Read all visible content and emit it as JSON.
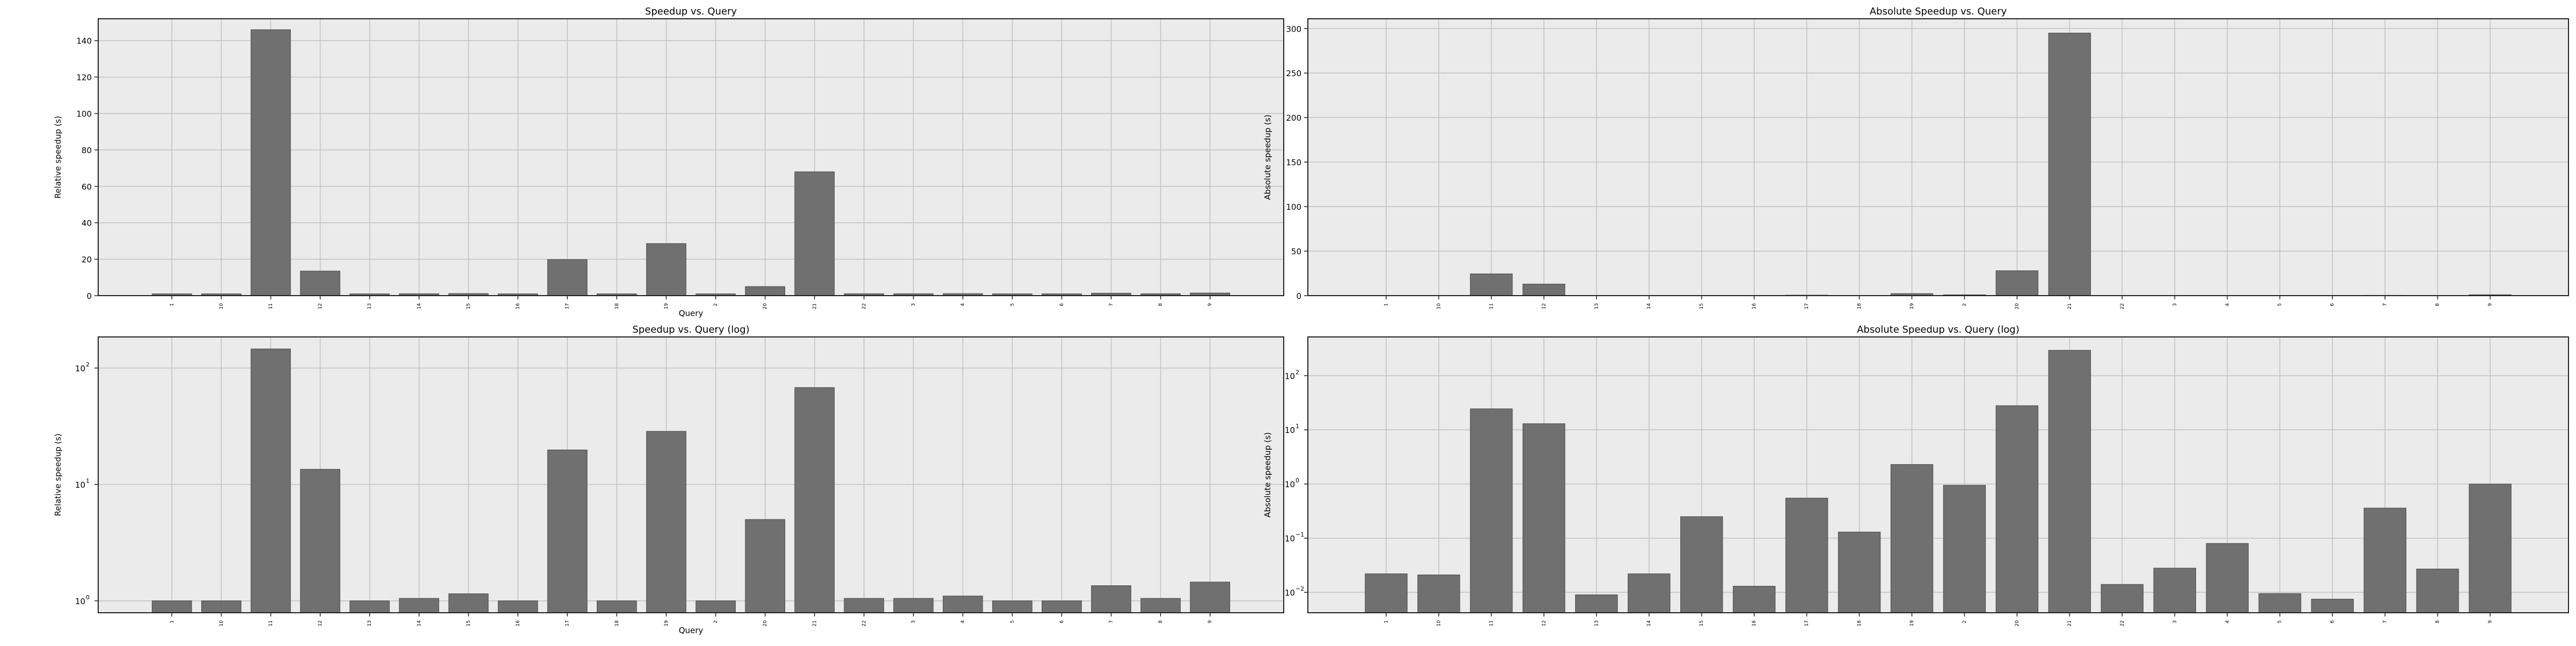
{
  "style": {
    "face": "#ebebeb",
    "grid": "#c4c4c4",
    "bar": "#707070",
    "bar_edge": "#4a4a4a"
  },
  "chart_data": [
    {
      "type": "bar",
      "title": "Speedup vs. Query",
      "xlabel": "Query",
      "ylabel": "Relative speedup (s)",
      "scale": "linear",
      "ylim": [
        0,
        152
      ],
      "yticks": [
        0,
        20,
        40,
        60,
        80,
        100,
        120,
        140
      ],
      "ytick_labels": [
        "0",
        "20",
        "40",
        "60",
        "80",
        "100",
        "120",
        "140"
      ],
      "grid": true,
      "categories": [
        "1",
        "10",
        "11",
        "12",
        "13",
        "14",
        "15",
        "16",
        "17",
        "18",
        "19",
        "2",
        "20",
        "21",
        "22",
        "3",
        "4",
        "5",
        "6",
        "7",
        "8",
        "9"
      ],
      "values": [
        1.0,
        1.0,
        146,
        13.5,
        1.0,
        1.05,
        1.15,
        1.0,
        19.8,
        1.0,
        28.6,
        1.0,
        5.0,
        68,
        1.05,
        1.05,
        1.1,
        1.0,
        1.0,
        1.35,
        1.05,
        1.45
      ]
    },
    {
      "type": "bar",
      "title": "Absolute Speedup vs. Query",
      "xlabel": "",
      "ylabel": "Absolute speedup (s)",
      "scale": "linear",
      "ylim": [
        0,
        311
      ],
      "yticks": [
        0,
        50,
        100,
        150,
        200,
        250,
        300
      ],
      "ytick_labels": [
        "0",
        "50",
        "100",
        "150",
        "200",
        "250",
        "300"
      ],
      "grid": true,
      "categories": [
        "1",
        "10",
        "11",
        "12",
        "13",
        "14",
        "15",
        "16",
        "17",
        "18",
        "19",
        "2",
        "20",
        "21",
        "22",
        "3",
        "4",
        "5",
        "6",
        "7",
        "8",
        "9"
      ],
      "values": [
        0.022,
        0.021,
        24.5,
        13.0,
        0.009,
        0.022,
        0.25,
        0.013,
        0.55,
        0.13,
        2.3,
        0.95,
        28.0,
        295,
        0.014,
        0.028,
        0.08,
        0.0095,
        0.0075,
        0.36,
        0.027,
        1.0
      ]
    },
    {
      "type": "bar",
      "title": "Speedup vs. Query (log)",
      "xlabel": "Query",
      "ylabel": "Relative speedup (s)",
      "scale": "log",
      "ylim": [
        0.79,
        185
      ],
      "yticks": [
        1,
        10,
        100
      ],
      "ytick_labels": [
        "10",
        "10",
        "10"
      ],
      "ytick_exps": [
        "0",
        "1",
        "2"
      ],
      "grid": true,
      "categories": [
        "1",
        "10",
        "11",
        "12",
        "13",
        "14",
        "15",
        "16",
        "17",
        "18",
        "19",
        "2",
        "20",
        "21",
        "22",
        "3",
        "4",
        "5",
        "6",
        "7",
        "8",
        "9"
      ],
      "values": [
        1.0,
        1.0,
        146,
        13.5,
        1.0,
        1.05,
        1.15,
        1.0,
        19.8,
        1.0,
        28.6,
        1.0,
        5.0,
        68,
        1.05,
        1.05,
        1.1,
        1.0,
        1.0,
        1.35,
        1.05,
        1.45
      ]
    },
    {
      "type": "bar",
      "title": "Absolute Speedup vs. Query (log)",
      "xlabel": "",
      "ylabel": "Absolute speedup (s)",
      "scale": "log",
      "ylim": [
        0.0042,
        520
      ],
      "yticks": [
        0.01,
        0.1,
        1,
        10,
        100
      ],
      "ytick_labels": [
        "10",
        "10",
        "10",
        "10",
        "10"
      ],
      "ytick_exps": [
        "−2",
        "−1",
        "0",
        "1",
        "2"
      ],
      "grid": true,
      "categories": [
        "1",
        "10",
        "11",
        "12",
        "13",
        "14",
        "15",
        "16",
        "17",
        "18",
        "19",
        "2",
        "20",
        "21",
        "22",
        "3",
        "4",
        "5",
        "6",
        "7",
        "8",
        "9"
      ],
      "values": [
        0.022,
        0.021,
        24.5,
        13.0,
        0.009,
        0.022,
        0.25,
        0.013,
        0.55,
        0.13,
        2.3,
        0.95,
        28.0,
        295,
        0.014,
        0.028,
        0.08,
        0.0095,
        0.0075,
        0.36,
        0.027,
        1.0
      ]
    }
  ]
}
